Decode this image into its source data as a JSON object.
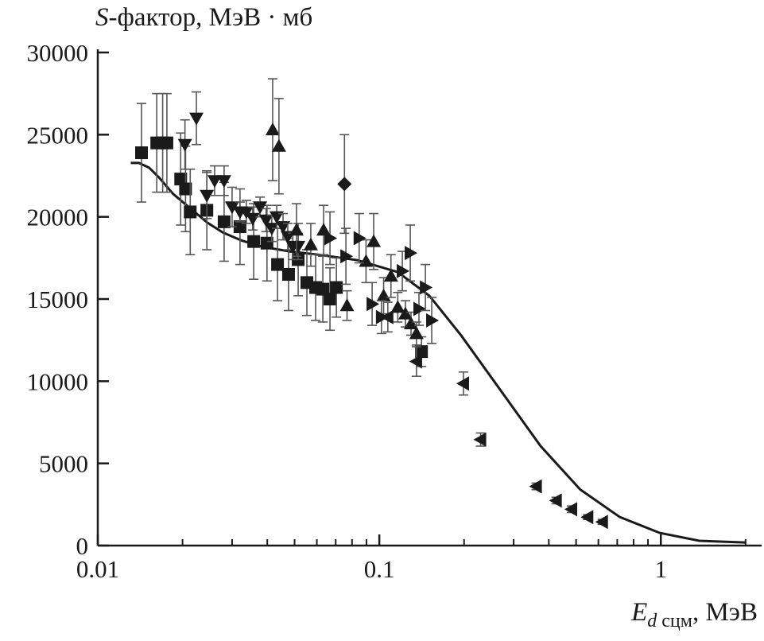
{
  "chart_data": {
    "type": "scatter",
    "title": "",
    "ylabel": {
      "symbol": "S",
      "text": "-фактор, МэВ · мб"
    },
    "xlabel": {
      "symbol": "E",
      "subscript_italic": "d",
      "subscript": " сцм",
      "text": ", МэВ"
    },
    "xscale": "log",
    "xlim": [
      0.01,
      2.28
    ],
    "ylim": [
      0,
      30000
    ],
    "xticks": [
      0.01,
      0.1,
      1
    ],
    "xtick_labels": [
      "0.01",
      "0.1",
      "1"
    ],
    "yticks": [
      0,
      5000,
      10000,
      15000,
      20000,
      25000,
      30000
    ],
    "ytick_labels": [
      "0",
      "5000",
      "10000",
      "15000",
      "20000",
      "25000",
      "30000"
    ],
    "grid": false,
    "legend": "none",
    "series": [
      {
        "name": "squares",
        "marker": "square",
        "points": [
          [
            0.0143,
            23900,
            3000
          ],
          [
            0.0162,
            24500,
            3000
          ],
          [
            0.017,
            24500,
            3000
          ],
          [
            0.0176,
            24500,
            3000
          ],
          [
            0.0197,
            22300,
            2800
          ],
          [
            0.0205,
            21700,
            2600
          ],
          [
            0.0213,
            20300,
            2600
          ],
          [
            0.0244,
            20400,
            2400
          ],
          [
            0.0281,
            19700,
            2400
          ],
          [
            0.032,
            19400,
            2300
          ],
          [
            0.0358,
            18500,
            2300
          ],
          [
            0.0399,
            18400,
            2300
          ],
          [
            0.0435,
            17100,
            2200
          ],
          [
            0.0476,
            16500,
            2200
          ],
          [
            0.0515,
            17400,
            2200
          ],
          [
            0.0553,
            16000,
            2000
          ],
          [
            0.0594,
            15700,
            2000
          ],
          [
            0.063,
            15600,
            2000
          ],
          [
            0.0668,
            15000,
            1900
          ],
          [
            0.0704,
            15700,
            1800
          ],
          [
            0.1412,
            11800,
            900
          ]
        ]
      },
      {
        "name": "down-triangles",
        "marker": "triangle-down",
        "points": [
          [
            0.0204,
            24400,
            1500
          ],
          [
            0.0224,
            26000,
            1600
          ],
          [
            0.0244,
            21300,
            1400
          ],
          [
            0.026,
            22200,
            900
          ],
          [
            0.0281,
            22200,
            900
          ],
          [
            0.03,
            20600,
            1200
          ],
          [
            0.032,
            20300,
            600
          ],
          [
            0.0337,
            20300,
            700
          ],
          [
            0.0355,
            19900,
            700
          ],
          [
            0.0377,
            20600,
            600
          ],
          [
            0.0396,
            19800,
            700
          ],
          [
            0.0415,
            19300,
            800
          ],
          [
            0.0432,
            20000,
            700
          ],
          [
            0.0455,
            19400,
            800
          ],
          [
            0.0473,
            18800,
            800
          ],
          [
            0.0493,
            18200,
            800
          ],
          [
            0.0515,
            18200,
            800
          ]
        ]
      },
      {
        "name": "up-triangles",
        "marker": "triangle-up",
        "points": [
          [
            0.0418,
            25300,
            3100
          ],
          [
            0.044,
            24300,
            2900
          ],
          [
            0.0508,
            19200,
            1600
          ],
          [
            0.0571,
            18300,
            1300
          ],
          [
            0.0634,
            19200,
            1500
          ],
          [
            0.0768,
            14600,
            900
          ],
          [
            0.0897,
            17300,
            1300
          ],
          [
            0.0955,
            18500,
            1700
          ],
          [
            0.1036,
            15200,
            1100
          ],
          [
            0.11,
            16400,
            1300
          ],
          [
            0.1163,
            14500,
            900
          ],
          [
            0.1238,
            14100,
            800
          ],
          [
            0.1296,
            13500,
            700
          ],
          [
            0.1355,
            12900,
            700
          ]
        ]
      },
      {
        "name": "right-triangles",
        "marker": "triangle-right",
        "points": [
          [
            0.0668,
            18700,
            1600
          ],
          [
            0.0761,
            17600,
            1700
          ],
          [
            0.0848,
            18700,
            1500
          ],
          [
            0.0943,
            14700,
            1300
          ],
          [
            0.1018,
            13900,
            1000
          ],
          [
            0.1207,
            16700,
            1200
          ],
          [
            0.1288,
            17800,
            1700
          ],
          [
            0.1383,
            14400,
            1000
          ],
          [
            0.1458,
            15700,
            1400
          ],
          [
            0.1535,
            13700,
            1400
          ]
        ]
      },
      {
        "name": "left-triangles",
        "marker": "triangle-left",
        "points": [
          [
            0.1072,
            13900,
            900
          ],
          [
            0.1355,
            11200,
            900
          ],
          [
            0.199,
            9860,
            700
          ],
          [
            0.229,
            6450,
            400
          ],
          [
            0.361,
            3600,
            200
          ],
          [
            0.425,
            2740,
            200
          ],
          [
            0.482,
            2210,
            200
          ],
          [
            0.55,
            1730,
            150
          ],
          [
            0.62,
            1440,
            150
          ]
        ]
      },
      {
        "name": "diamond",
        "marker": "diamond",
        "points": [
          [
            0.0752,
            22000,
            3000
          ]
        ]
      }
    ],
    "curve": {
      "name": "theory",
      "type": "line",
      "x": [
        0.0131,
        0.014,
        0.0152,
        0.0165,
        0.0185,
        0.0214,
        0.0245,
        0.0278,
        0.0325,
        0.0385,
        0.048,
        0.0606,
        0.0837,
        0.1163,
        0.1506,
        0.1952,
        0.2701,
        0.3737,
        0.517,
        0.715,
        0.991,
        1.37,
        1.99
      ],
      "y": [
        23280,
        23280,
        23000,
        22400,
        21400,
        20490,
        19650,
        19050,
        18550,
        18180,
        17900,
        17700,
        17360,
        16640,
        15200,
        12790,
        9430,
        6060,
        3410,
        1730,
        770,
        290,
        190
      ]
    }
  }
}
